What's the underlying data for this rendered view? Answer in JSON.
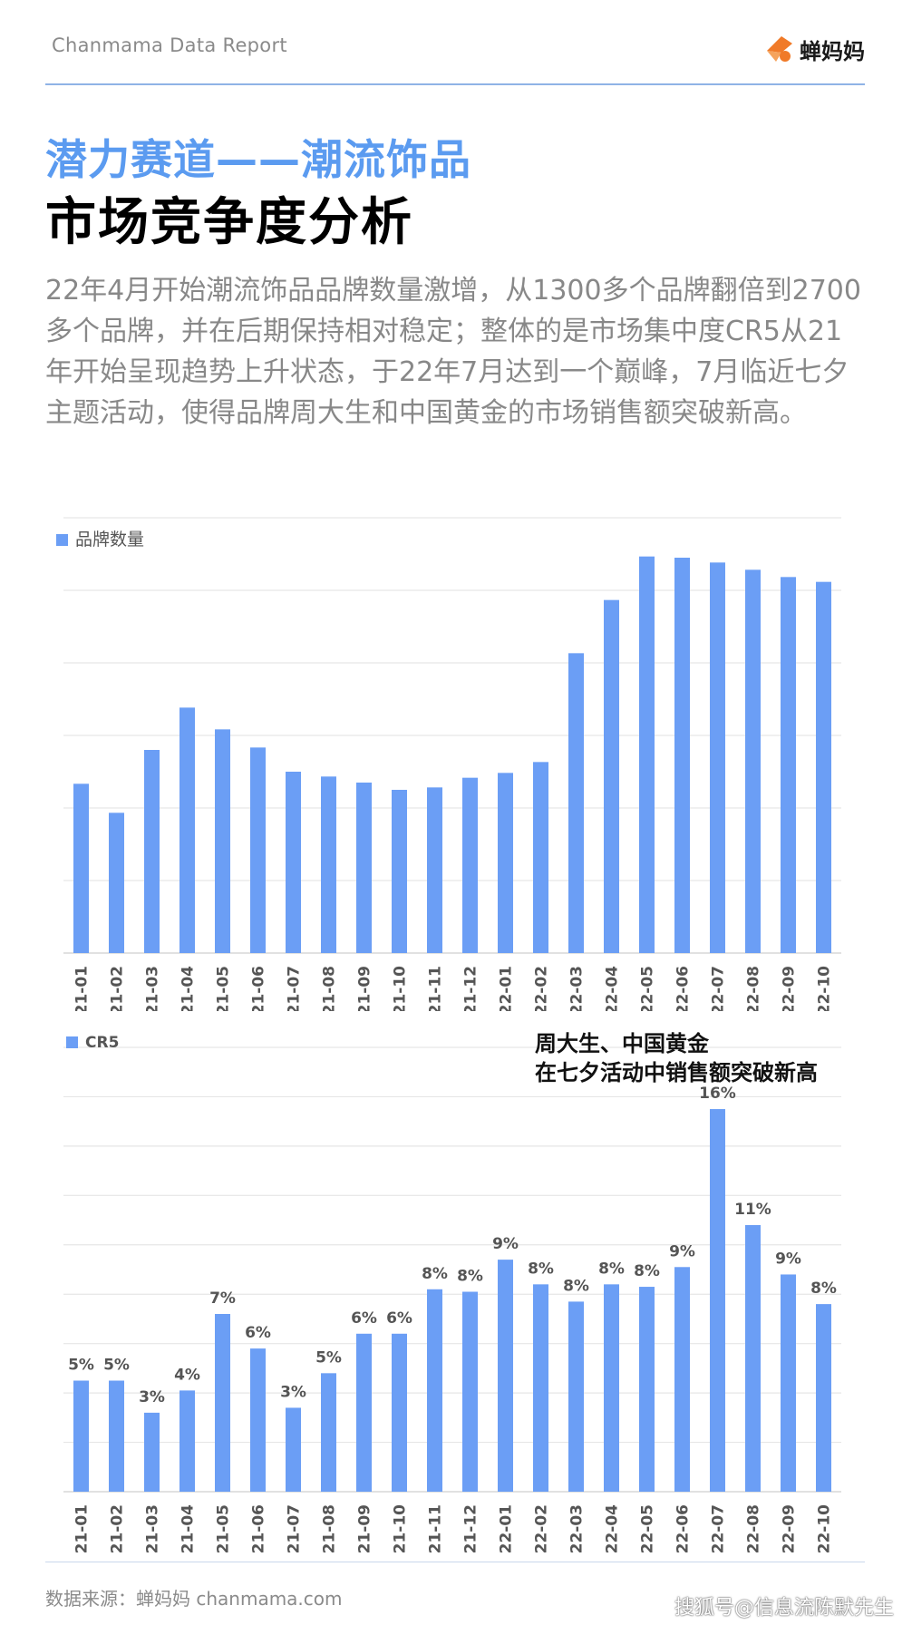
{
  "header": {
    "report_name": "Chanmama Data Report",
    "brand_name": "蝉妈妈"
  },
  "title": {
    "line1": "潜力赛道——潮流饰品",
    "line2": "市场竞争度分析"
  },
  "intro": "22年4月开始潮流饰品品牌数量激增，从1300多个品牌翻倍到2700多个品牌，并在后期保持相对稳定；整体的是市场集中度CR5从21年开始呈现趋势上升状态，于22年7月达到一个巅峰，7月临近七夕主题活动，使得品牌周大生和中国黄金的市场销售额突破新高。",
  "colors": {
    "bar": "#6b9ef5",
    "grid": "#e6e6e6",
    "title_accent": "#5b9bf0",
    "brand_orange": "#f07a28"
  },
  "chart_data": [
    {
      "type": "bar",
      "categories": [
        "21-01",
        "21-02",
        "21-03",
        "21-04",
        "21-05",
        "21-06",
        "21-07",
        "21-08",
        "21-09",
        "21-10",
        "21-11",
        "21-12",
        "22-01",
        "22-02",
        "22-03",
        "22-04",
        "22-05",
        "22-06",
        "22-07",
        "22-08",
        "22-09",
        "22-10"
      ],
      "series": [
        {
          "name": "品牌数量",
          "values": [
            1400,
            1160,
            1680,
            2030,
            1850,
            1700,
            1500,
            1460,
            1410,
            1350,
            1370,
            1450,
            1490,
            1580,
            2480,
            2920,
            3280,
            3270,
            3230,
            3170,
            3110,
            3070
          ]
        }
      ],
      "ylim": [
        0,
        3600
      ],
      "grid": true,
      "legend": "top-left"
    },
    {
      "type": "bar",
      "categories": [
        "21-01",
        "21-02",
        "21-03",
        "21-04",
        "21-05",
        "21-06",
        "21-07",
        "21-08",
        "21-09",
        "21-10",
        "21-11",
        "21-12",
        "22-01",
        "22-02",
        "22-03",
        "22-04",
        "22-05",
        "22-06",
        "22-07",
        "22-08",
        "22-09",
        "22-10"
      ],
      "series": [
        {
          "name": "CR5",
          "values": [
            4.5,
            4.5,
            3.2,
            4.1,
            7.2,
            5.8,
            3.4,
            4.8,
            6.4,
            6.4,
            8.2,
            8.1,
            9.4,
            8.4,
            7.7,
            8.4,
            8.3,
            9.1,
            15.5,
            10.8,
            8.8,
            7.6
          ]
        }
      ],
      "data_labels": [
        "5%",
        "5%",
        "3%",
        "4%",
        "7%",
        "6%",
        "3%",
        "5%",
        "6%",
        "6%",
        "8%",
        "8%",
        "9%",
        "8%",
        "8%",
        "8%",
        "8%",
        "9%",
        "16%",
        "11%",
        "9%",
        "8%"
      ],
      "annotation": [
        "周大生、中国黄金",
        "在七夕活动中销售额突破新高"
      ],
      "ylim": [
        0,
        18
      ],
      "grid": true,
      "legend": "top-left"
    }
  ],
  "footer": {
    "source": "数据来源：蝉妈妈 chanmama.com",
    "watermark": "搜狐号@信息流陈默先生"
  }
}
